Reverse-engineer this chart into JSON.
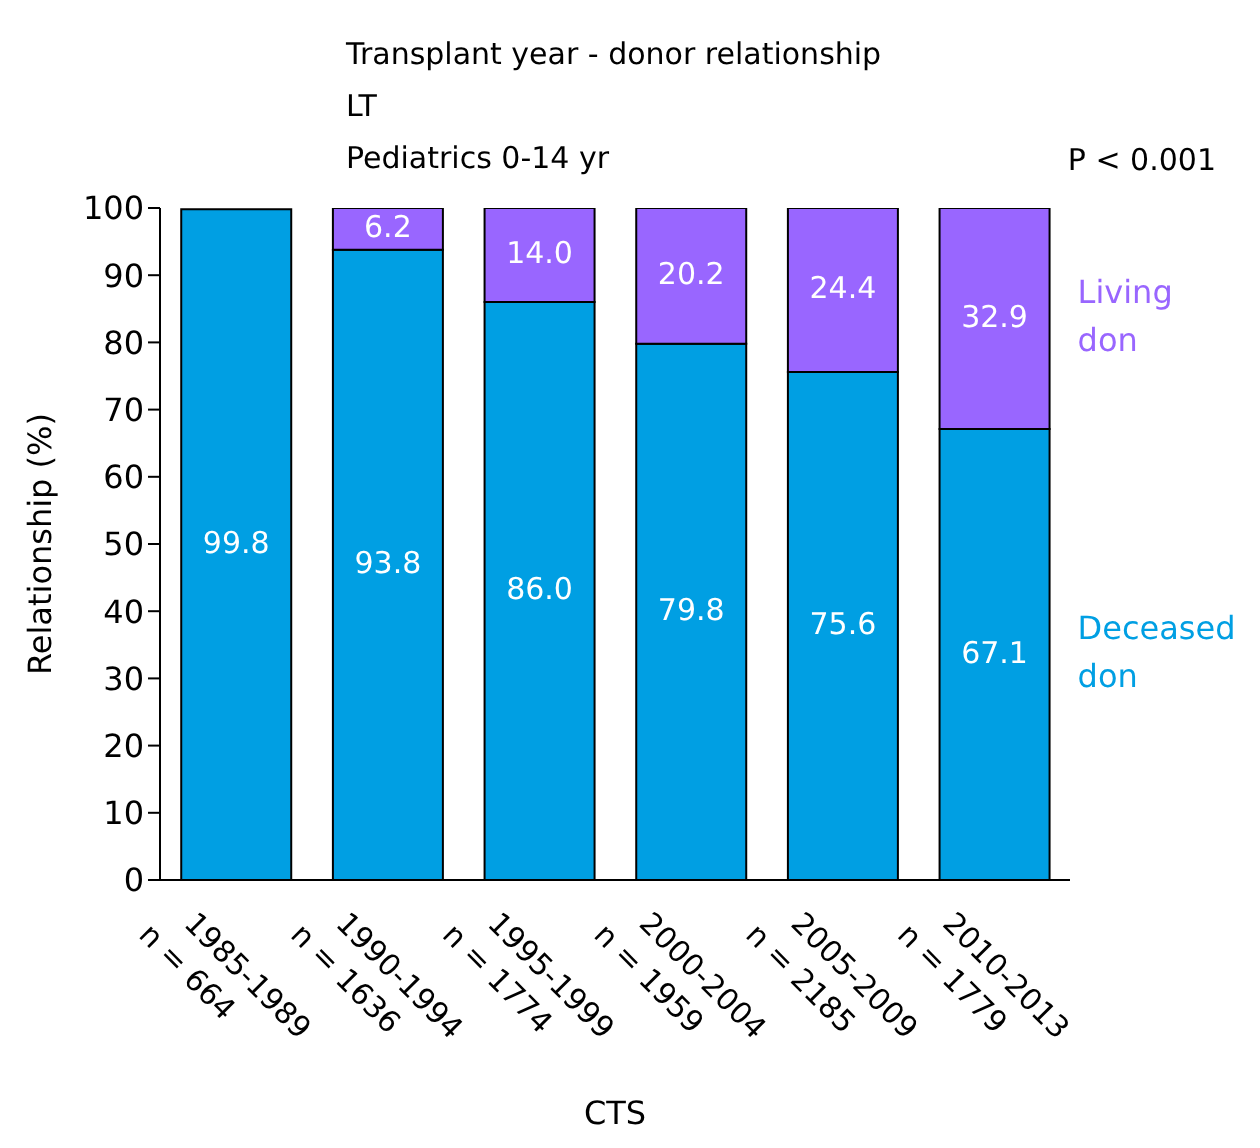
{
  "chart_data": {
    "type": "bar",
    "title": "Transplant year - donor relationship",
    "subtitle": "LT\nPediatrics 0-14 yr",
    "annotations": [
      "P < 0.001"
    ],
    "xlabel": "CTS",
    "ylabel": "Relationship (%)",
    "categories": [
      "1985-1989\nn = 664",
      "1990-1994\nn = 1636",
      "1995-1999\nn = 1774",
      "2000-2004\nn = 1959",
      "2005-2009\nn = 2185",
      "2010-2013\nn = 1779"
    ],
    "stacked": true,
    "ylim": [
      0,
      100
    ],
    "yticks": [
      0,
      10,
      20,
      30,
      40,
      50,
      60,
      70,
      80,
      90,
      100
    ],
    "legend": "right",
    "series": [
      {
        "name": "Deceased don",
        "color": "#009fe3",
        "values": [
          99.8,
          93.8,
          86.0,
          79.8,
          75.6,
          67.1
        ],
        "value_labels": [
          "99.8",
          "93.8",
          "86.0",
          "79.8",
          "75.6",
          "67.1"
        ]
      },
      {
        "name": "Living don",
        "color": "#9966ff",
        "values": [
          null,
          6.2,
          14.0,
          20.2,
          24.4,
          32.9
        ],
        "value_labels": [
          null,
          "6.2",
          "14.0",
          "20.2",
          "24.4",
          "32.9"
        ]
      }
    ]
  }
}
